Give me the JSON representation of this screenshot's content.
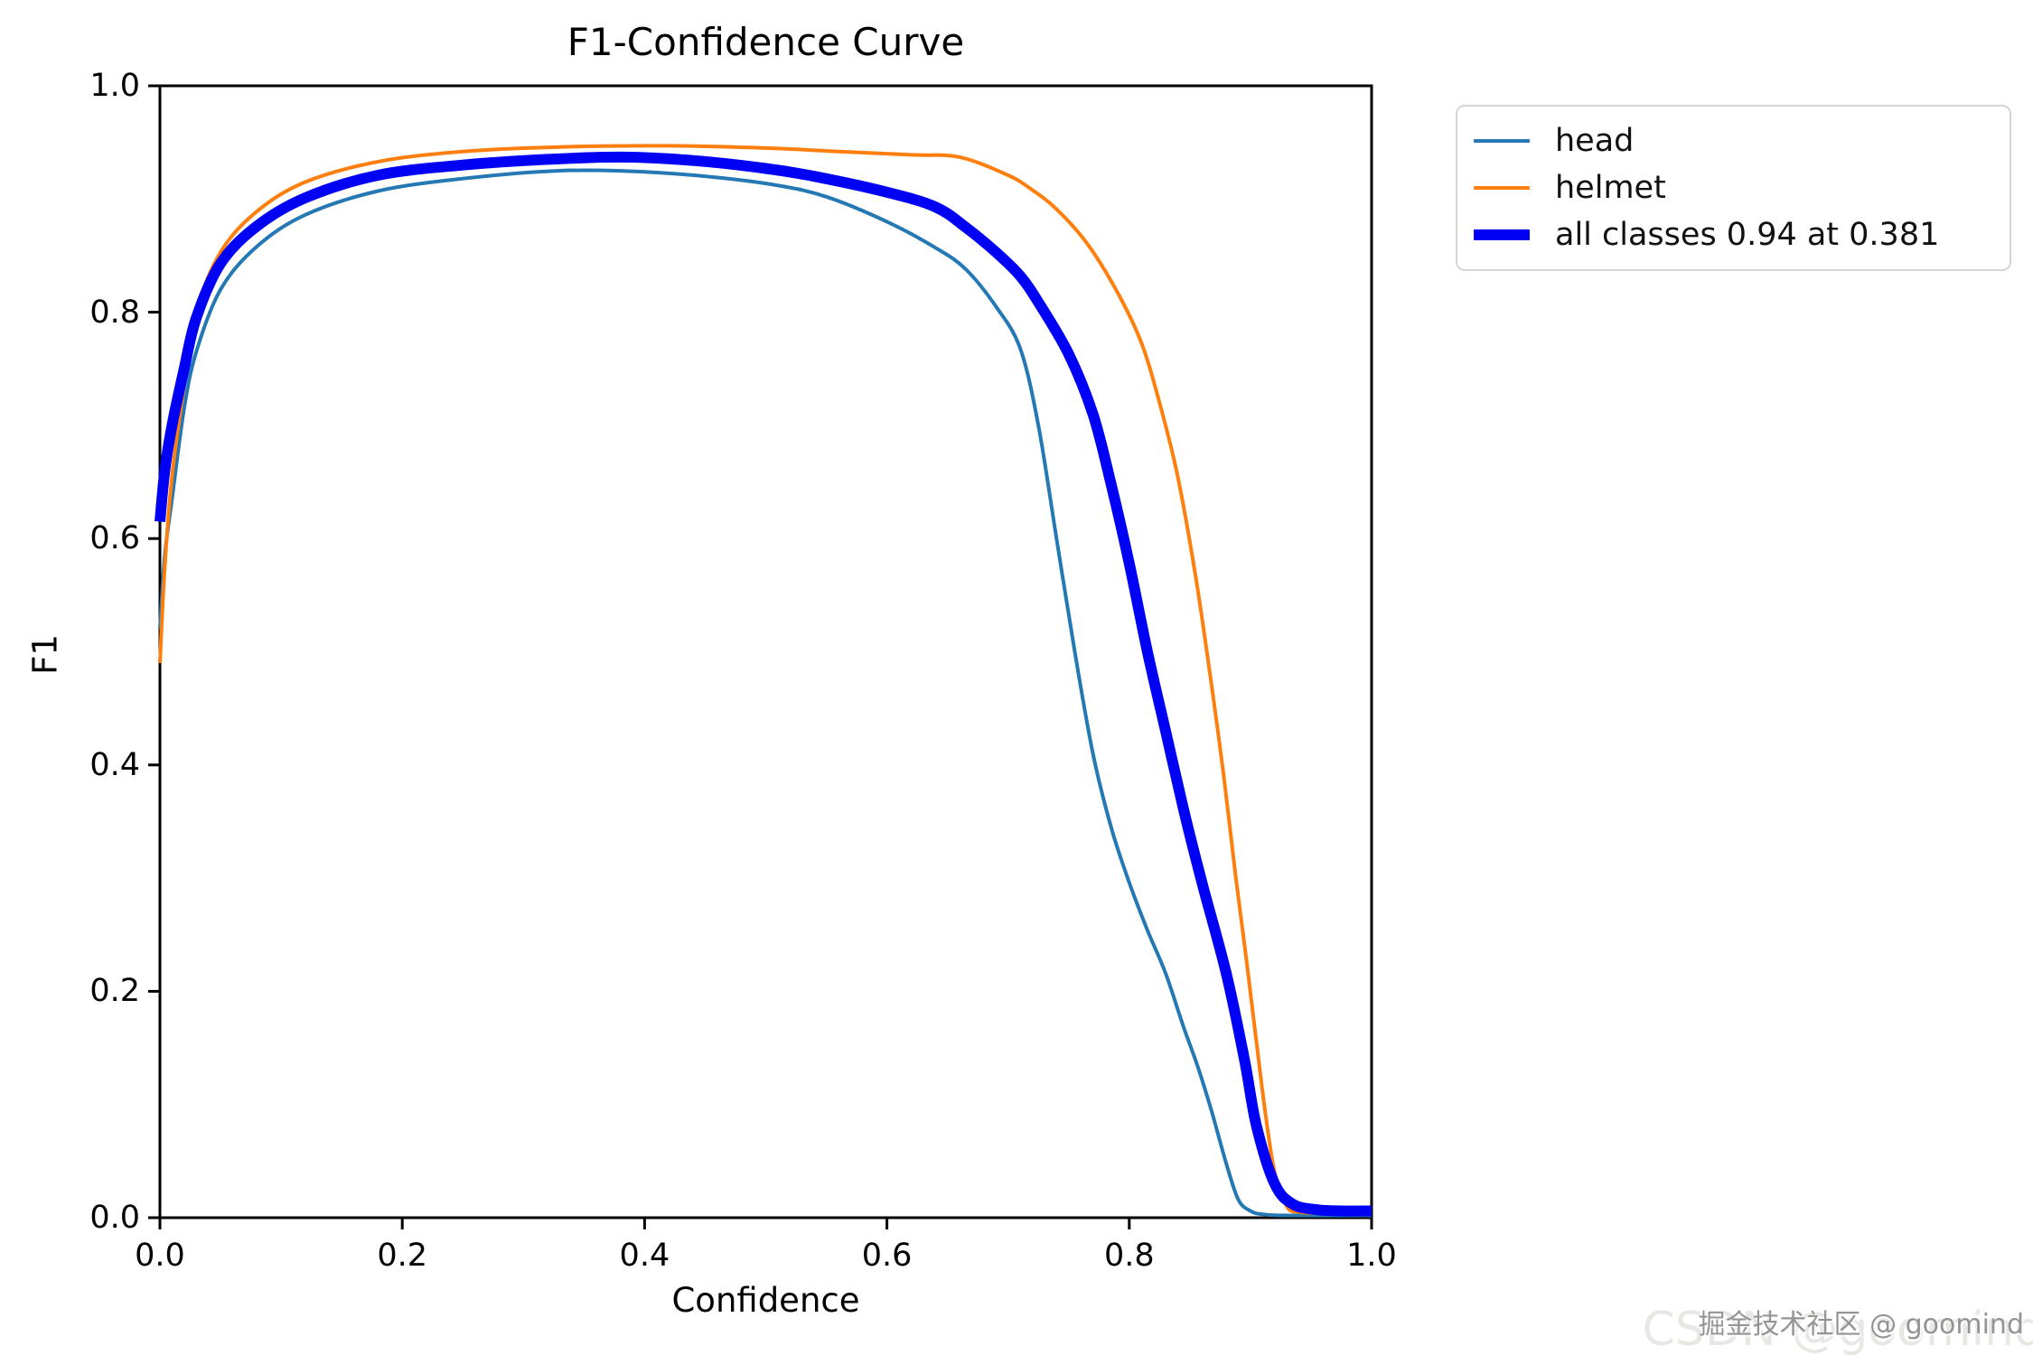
{
  "chart_data": {
    "type": "line",
    "title": "F1-Confidence Curve",
    "xlabel": "Confidence",
    "ylabel": "F1",
    "xlim": [
      0.0,
      1.0
    ],
    "ylim": [
      0.0,
      1.0
    ],
    "xticks": [
      "0.0",
      "0.2",
      "0.4",
      "0.6",
      "0.8",
      "1.0"
    ],
    "yticks": [
      "0.0",
      "0.2",
      "0.4",
      "0.6",
      "0.8",
      "1.0"
    ],
    "grid": false,
    "legend_position": "upper right, outside plot",
    "axis_color": "#000000",
    "series": [
      {
        "name": "head",
        "color": "#2478b4",
        "width": 4,
        "points": [
          [
            0.0,
            0.52
          ],
          [
            0.004,
            0.585
          ],
          [
            0.01,
            0.635
          ],
          [
            0.02,
            0.715
          ],
          [
            0.03,
            0.765
          ],
          [
            0.05,
            0.82
          ],
          [
            0.08,
            0.858
          ],
          [
            0.12,
            0.886
          ],
          [
            0.18,
            0.907
          ],
          [
            0.25,
            0.918
          ],
          [
            0.33,
            0.925
          ],
          [
            0.4,
            0.924
          ],
          [
            0.46,
            0.919
          ],
          [
            0.51,
            0.912
          ],
          [
            0.55,
            0.902
          ],
          [
            0.6,
            0.88
          ],
          [
            0.64,
            0.857
          ],
          [
            0.665,
            0.838
          ],
          [
            0.69,
            0.805
          ],
          [
            0.71,
            0.768
          ],
          [
            0.725,
            0.7
          ],
          [
            0.74,
            0.6
          ],
          [
            0.755,
            0.5
          ],
          [
            0.77,
            0.41
          ],
          [
            0.785,
            0.345
          ],
          [
            0.8,
            0.296
          ],
          [
            0.815,
            0.254
          ],
          [
            0.83,
            0.216
          ],
          [
            0.845,
            0.168
          ],
          [
            0.857,
            0.132
          ],
          [
            0.868,
            0.094
          ],
          [
            0.88,
            0.048
          ],
          [
            0.89,
            0.016
          ],
          [
            0.9,
            0.006
          ],
          [
            0.91,
            0.003
          ],
          [
            0.93,
            0.002
          ],
          [
            1.0,
            0.002
          ]
        ]
      },
      {
        "name": "helmet",
        "color": "#ff7f0e",
        "width": 4,
        "points": [
          [
            0.0,
            0.49
          ],
          [
            0.004,
            0.575
          ],
          [
            0.01,
            0.655
          ],
          [
            0.02,
            0.735
          ],
          [
            0.03,
            0.8
          ],
          [
            0.05,
            0.853
          ],
          [
            0.08,
            0.889
          ],
          [
            0.12,
            0.915
          ],
          [
            0.18,
            0.933
          ],
          [
            0.25,
            0.942
          ],
          [
            0.33,
            0.946
          ],
          [
            0.42,
            0.947
          ],
          [
            0.5,
            0.945
          ],
          [
            0.56,
            0.942
          ],
          [
            0.62,
            0.939
          ],
          [
            0.66,
            0.937
          ],
          [
            0.7,
            0.921
          ],
          [
            0.72,
            0.908
          ],
          [
            0.74,
            0.891
          ],
          [
            0.765,
            0.861
          ],
          [
            0.79,
            0.818
          ],
          [
            0.81,
            0.773
          ],
          [
            0.825,
            0.72
          ],
          [
            0.84,
            0.655
          ],
          [
            0.855,
            0.565
          ],
          [
            0.868,
            0.47
          ],
          [
            0.878,
            0.39
          ],
          [
            0.888,
            0.3
          ],
          [
            0.897,
            0.225
          ],
          [
            0.905,
            0.155
          ],
          [
            0.912,
            0.095
          ],
          [
            0.92,
            0.04
          ],
          [
            0.93,
            0.01
          ],
          [
            0.94,
            0.005
          ],
          [
            0.96,
            0.004
          ],
          [
            1.0,
            0.004
          ]
        ]
      },
      {
        "name": "all classes",
        "color": "#0000f5",
        "width": 12,
        "points": [
          [
            0.0,
            0.615
          ],
          [
            0.004,
            0.66
          ],
          [
            0.01,
            0.7
          ],
          [
            0.02,
            0.75
          ],
          [
            0.03,
            0.795
          ],
          [
            0.05,
            0.843
          ],
          [
            0.08,
            0.876
          ],
          [
            0.12,
            0.901
          ],
          [
            0.18,
            0.921
          ],
          [
            0.25,
            0.93
          ],
          [
            0.32,
            0.935
          ],
          [
            0.381,
            0.937
          ],
          [
            0.44,
            0.934
          ],
          [
            0.5,
            0.927
          ],
          [
            0.54,
            0.92
          ],
          [
            0.6,
            0.906
          ],
          [
            0.64,
            0.893
          ],
          [
            0.665,
            0.875
          ],
          [
            0.69,
            0.853
          ],
          [
            0.71,
            0.832
          ],
          [
            0.726,
            0.807
          ],
          [
            0.75,
            0.763
          ],
          [
            0.77,
            0.71
          ],
          [
            0.785,
            0.648
          ],
          [
            0.8,
            0.578
          ],
          [
            0.815,
            0.5
          ],
          [
            0.83,
            0.43
          ],
          [
            0.845,
            0.36
          ],
          [
            0.86,
            0.296
          ],
          [
            0.88,
            0.216
          ],
          [
            0.895,
            0.14
          ],
          [
            0.905,
            0.081
          ],
          [
            0.92,
            0.03
          ],
          [
            0.935,
            0.012
          ],
          [
            0.955,
            0.007
          ],
          [
            0.975,
            0.006
          ],
          [
            1.0,
            0.006
          ]
        ]
      }
    ]
  },
  "legend": {
    "items": [
      {
        "label": "head"
      },
      {
        "label": "helmet"
      },
      {
        "label": "all classes 0.94 at 0.381"
      }
    ]
  },
  "watermarks": {
    "primary": "掘金技术社区 @ goomind",
    "secondary": "CSDN @goomind"
  }
}
